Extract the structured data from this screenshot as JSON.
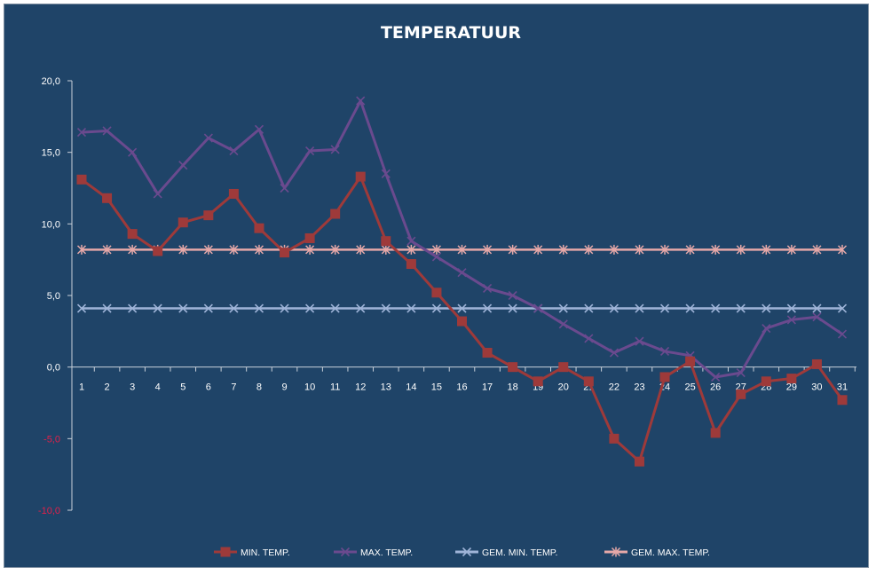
{
  "chart_data": {
    "type": "line",
    "title": "TEMPERATUUR",
    "x": [
      1,
      2,
      3,
      4,
      5,
      6,
      7,
      8,
      9,
      10,
      11,
      12,
      13,
      14,
      15,
      16,
      17,
      18,
      19,
      20,
      21,
      22,
      23,
      24,
      25,
      26,
      27,
      28,
      29,
      30,
      31
    ],
    "y_ticks": [
      "20,0",
      "15,0",
      "10,0",
      "5,0",
      "0,0",
      "-5,0",
      "-10,0"
    ],
    "ylim": [
      -10,
      20
    ],
    "y_tick_values": [
      20,
      15,
      10,
      5,
      0,
      -5,
      -10
    ],
    "grid": false,
    "legend_position": "bottom",
    "series": [
      {
        "name": "MIN. TEMP.",
        "color": "#9e3a3a",
        "marker": "square",
        "values": [
          13.1,
          11.8,
          9.3,
          8.1,
          10.1,
          10.6,
          12.1,
          9.7,
          8.0,
          9.0,
          10.7,
          13.3,
          8.8,
          7.2,
          5.2,
          3.2,
          1.0,
          0.0,
          -1.0,
          0.0,
          -1.0,
          -5.0,
          -6.6,
          -0.7,
          0.4,
          -4.6,
          -1.9,
          -1.0,
          -0.8,
          0.2,
          -2.3
        ]
      },
      {
        "name": "MAX. TEMP.",
        "color": "#6a4a8e",
        "marker": "x",
        "values": [
          16.4,
          16.5,
          15.0,
          12.1,
          14.1,
          16.0,
          15.1,
          16.6,
          12.5,
          15.1,
          15.2,
          18.6,
          13.5,
          8.8,
          7.7,
          6.6,
          5.5,
          5.0,
          4.1,
          3.0,
          2.0,
          1.0,
          1.8,
          1.1,
          0.8,
          -0.7,
          -0.4,
          2.7,
          3.3,
          3.5,
          2.3
        ]
      },
      {
        "name": "GEM. MIN. TEMP.",
        "color": "#9fb4d8",
        "marker": "x",
        "values": [
          4.1,
          4.1,
          4.1,
          4.1,
          4.1,
          4.1,
          4.1,
          4.1,
          4.1,
          4.1,
          4.1,
          4.1,
          4.1,
          4.1,
          4.1,
          4.1,
          4.1,
          4.1,
          4.1,
          4.1,
          4.1,
          4.1,
          4.1,
          4.1,
          4.1,
          4.1,
          4.1,
          4.1,
          4.1,
          4.1,
          4.1
        ]
      },
      {
        "name": "GEM. MAX. TEMP.",
        "color": "#e6a8a8",
        "marker": "star",
        "values": [
          8.2,
          8.2,
          8.2,
          8.2,
          8.2,
          8.2,
          8.2,
          8.2,
          8.2,
          8.2,
          8.2,
          8.2,
          8.2,
          8.2,
          8.2,
          8.2,
          8.2,
          8.2,
          8.2,
          8.2,
          8.2,
          8.2,
          8.2,
          8.2,
          8.2,
          8.2,
          8.2,
          8.2,
          8.2,
          8.2,
          8.2
        ]
      }
    ]
  }
}
